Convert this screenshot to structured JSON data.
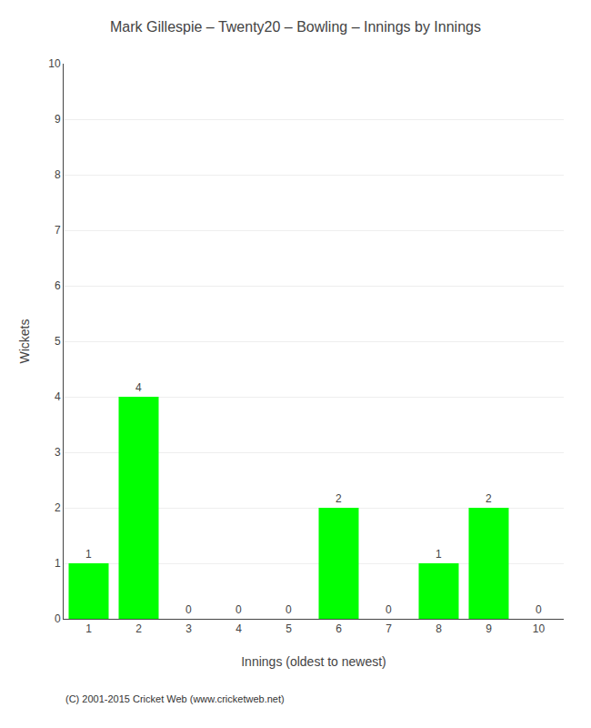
{
  "chart_data": {
    "type": "bar",
    "title": "Mark Gillespie – Twenty20 – Bowling – Innings by Innings",
    "xlabel": "Innings (oldest to newest)",
    "ylabel": "Wickets",
    "categories": [
      1,
      2,
      3,
      4,
      5,
      6,
      7,
      8,
      9,
      10
    ],
    "values": [
      1,
      4,
      0,
      0,
      0,
      2,
      0,
      1,
      2,
      0
    ],
    "color": "#00ff00",
    "ylim": [
      0,
      10
    ],
    "yticks": [
      0,
      1,
      2,
      3,
      4,
      5,
      6,
      7,
      8,
      9,
      10
    ],
    "grid": true,
    "data_labels": true,
    "annotations": [
      "(C) 2001-2015 Cricket Web (www.cricketweb.net)"
    ]
  }
}
